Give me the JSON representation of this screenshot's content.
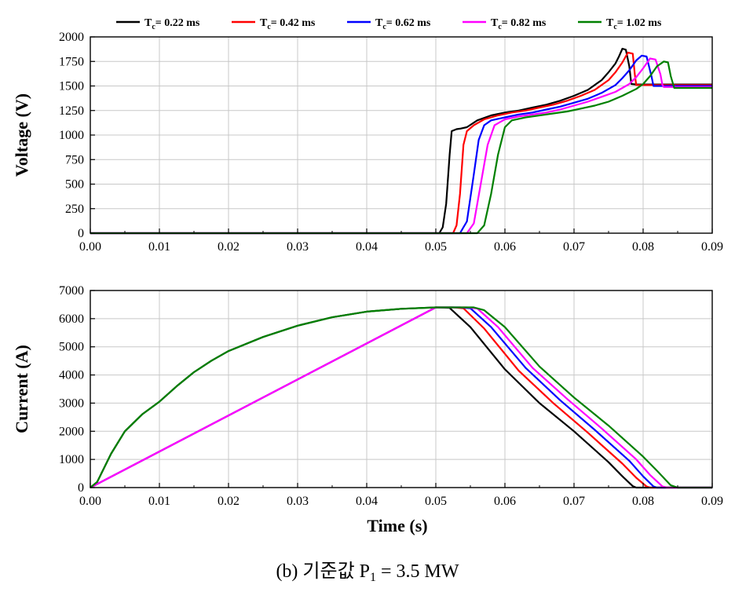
{
  "caption": "(b)  기준값 P",
  "caption_sub": "1",
  "caption_tail": " = 3.5 MW",
  "legend": {
    "placement": "top",
    "items": [
      {
        "prefix": "T",
        "sub": "c",
        "text": "= 0.22 ms",
        "color": "#000000"
      },
      {
        "prefix": "T",
        "sub": "c",
        "text": "= 0.42 ms",
        "color": "#ff0000"
      },
      {
        "prefix": "T",
        "sub": "c",
        "text": "= 0.62 ms",
        "color": "#0000ff"
      },
      {
        "prefix": "T",
        "sub": "c",
        "text": "= 0.82 ms",
        "color": "#ff00ff"
      },
      {
        "prefix": "T",
        "sub": "c",
        "text": "= 1.02 ms",
        "color": "#008000"
      }
    ]
  },
  "chart_data": [
    {
      "type": "line",
      "title": "",
      "xlabel": "",
      "ylabel": "Voltage (V)",
      "xlim": [
        0.0,
        0.09
      ],
      "ylim": [
        0,
        2000
      ],
      "xticks": [
        "0.00",
        "0.01",
        "0.02",
        "0.03",
        "0.04",
        "0.05",
        "0.06",
        "0.07",
        "0.08",
        "0.09"
      ],
      "yticks": [
        "0",
        "250",
        "500",
        "750",
        "1000",
        "1250",
        "1500",
        "1750",
        "2000"
      ],
      "grid": true,
      "series": [
        {
          "name": "Tc= 0.22 ms",
          "color": "#000000",
          "x": [
            0,
            0.0505,
            0.051,
            0.0515,
            0.052,
            0.0523,
            0.053,
            0.0535,
            0.0545,
            0.056,
            0.058,
            0.06,
            0.062,
            0.064,
            0.066,
            0.068,
            0.07,
            0.072,
            0.074,
            0.075,
            0.076,
            0.0765,
            0.077,
            0.0775,
            0.078,
            0.0783,
            0.079,
            0.09
          ],
          "y": [
            0,
            0,
            60,
            300,
            800,
            1040,
            1060,
            1065,
            1080,
            1150,
            1200,
            1230,
            1250,
            1280,
            1310,
            1350,
            1400,
            1460,
            1560,
            1640,
            1730,
            1800,
            1880,
            1870,
            1700,
            1520,
            1515,
            1515
          ]
        },
        {
          "name": "Tc= 0.42 ms",
          "color": "#ff0000",
          "x": [
            0,
            0.0525,
            0.053,
            0.0535,
            0.054,
            0.0545,
            0.0555,
            0.057,
            0.059,
            0.061,
            0.063,
            0.065,
            0.067,
            0.069,
            0.071,
            0.073,
            0.075,
            0.076,
            0.077,
            0.0778,
            0.0785,
            0.0788,
            0.079,
            0.09
          ],
          "y": [
            0,
            0,
            80,
            400,
            900,
            1040,
            1100,
            1160,
            1200,
            1230,
            1250,
            1280,
            1310,
            1350,
            1400,
            1460,
            1560,
            1640,
            1740,
            1840,
            1830,
            1620,
            1510,
            1510
          ]
        },
        {
          "name": "Tc= 0.62 ms",
          "color": "#0000ff",
          "x": [
            0,
            0.0535,
            0.0545,
            0.0555,
            0.0562,
            0.057,
            0.058,
            0.06,
            0.062,
            0.064,
            0.066,
            0.068,
            0.07,
            0.072,
            0.074,
            0.076,
            0.077,
            0.078,
            0.079,
            0.0798,
            0.0805,
            0.0812,
            0.0815,
            0.09
          ],
          "y": [
            0,
            0,
            120,
            600,
            950,
            1100,
            1150,
            1180,
            1210,
            1230,
            1260,
            1290,
            1330,
            1370,
            1430,
            1510,
            1580,
            1660,
            1760,
            1810,
            1800,
            1600,
            1500,
            1500
          ]
        },
        {
          "name": "Tc= 0.82 ms",
          "color": "#ff00ff",
          "x": [
            0,
            0.0545,
            0.0555,
            0.0565,
            0.0575,
            0.0585,
            0.06,
            0.062,
            0.064,
            0.066,
            0.068,
            0.07,
            0.072,
            0.074,
            0.076,
            0.078,
            0.079,
            0.08,
            0.081,
            0.0818,
            0.0825,
            0.0828,
            0.083,
            0.09
          ],
          "y": [
            0,
            0,
            100,
            500,
            900,
            1100,
            1160,
            1190,
            1210,
            1230,
            1260,
            1300,
            1340,
            1390,
            1440,
            1520,
            1590,
            1680,
            1780,
            1770,
            1620,
            1510,
            1490,
            1490
          ]
        },
        {
          "name": "Tc= 1.02 ms",
          "color": "#008000",
          "x": [
            0,
            0.056,
            0.057,
            0.058,
            0.059,
            0.06,
            0.061,
            0.063,
            0.065,
            0.067,
            0.069,
            0.071,
            0.073,
            0.075,
            0.077,
            0.079,
            0.08,
            0.081,
            0.082,
            0.083,
            0.0836,
            0.084,
            0.0845,
            0.09
          ],
          "y": [
            0,
            0,
            80,
            400,
            800,
            1080,
            1150,
            1180,
            1200,
            1220,
            1240,
            1270,
            1300,
            1340,
            1400,
            1470,
            1520,
            1600,
            1700,
            1750,
            1740,
            1600,
            1480,
            1480
          ]
        }
      ]
    },
    {
      "type": "line",
      "title": "",
      "xlabel": "Time (s)",
      "ylabel": "Current (A)",
      "xlim": [
        0.0,
        0.09
      ],
      "ylim": [
        0,
        7000
      ],
      "xticks": [
        "0.00",
        "0.01",
        "0.02",
        "0.03",
        "0.04",
        "0.05",
        "0.06",
        "0.07",
        "0.08",
        "0.09"
      ],
      "yticks": [
        "0",
        "1000",
        "2000",
        "3000",
        "4000",
        "5000",
        "6000",
        "7000"
      ],
      "grid": true,
      "series": [
        {
          "name": "Tc= 0.22 ms",
          "color": "#000000",
          "x": [
            0.0,
            0.001,
            0.002,
            0.003,
            0.005,
            0.0075,
            0.01,
            0.0125,
            0.015,
            0.0175,
            0.02,
            0.025,
            0.03,
            0.035,
            0.04,
            0.045,
            0.05,
            0.052,
            0.055,
            0.06,
            0.065,
            0.07,
            0.075,
            0.077,
            0.0785,
            0.079,
            0.09
          ],
          "y": [
            0,
            200,
            700,
            1200,
            2000,
            2600,
            3050,
            3600,
            4100,
            4500,
            4850,
            5350,
            5750,
            6050,
            6250,
            6350,
            6400,
            6380,
            5700,
            4200,
            3000,
            2000,
            900,
            400,
            50,
            0,
            0
          ]
        },
        {
          "name": "Tc= 0.42 ms",
          "color": "#ff0000",
          "x": [
            0.0,
            0.05,
            0.0525,
            0.054,
            0.057,
            0.062,
            0.067,
            0.072,
            0.077,
            0.079,
            0.0805,
            0.081,
            0.09
          ],
          "y": [
            0,
            6400,
            6400,
            6370,
            5650,
            4150,
            3000,
            1950,
            850,
            350,
            40,
            0,
            0
          ]
        },
        {
          "name": "Tc= 0.62 ms",
          "color": "#0000ff",
          "x": [
            0.0,
            0.05,
            0.0535,
            0.055,
            0.058,
            0.063,
            0.068,
            0.073,
            0.078,
            0.08,
            0.0815,
            0.082,
            0.09
          ],
          "y": [
            0,
            6400,
            6400,
            6370,
            5700,
            4250,
            3100,
            2050,
            950,
            400,
            40,
            0,
            0
          ]
        },
        {
          "name": "Tc= 0.82 ms",
          "color": "#ff00ff",
          "x": [
            0.0,
            0.05,
            0.0545,
            0.056,
            0.059,
            0.064,
            0.069,
            0.074,
            0.079,
            0.081,
            0.0828,
            0.0835,
            0.09
          ],
          "y": [
            0,
            6400,
            6400,
            6360,
            5700,
            4250,
            3150,
            2100,
            1000,
            450,
            40,
            0,
            0
          ]
        },
        {
          "name": "Tc= 1.02 ms",
          "color": "#008000",
          "x": [
            0.0,
            0.001,
            0.002,
            0.003,
            0.005,
            0.0075,
            0.01,
            0.0125,
            0.015,
            0.0175,
            0.02,
            0.025,
            0.03,
            0.035,
            0.04,
            0.045,
            0.05,
            0.0555,
            0.057,
            0.06,
            0.065,
            0.07,
            0.075,
            0.08,
            0.082,
            0.084,
            0.085,
            0.09
          ],
          "y": [
            0,
            200,
            700,
            1200,
            2000,
            2600,
            3050,
            3600,
            4100,
            4500,
            4850,
            5350,
            5750,
            6050,
            6250,
            6350,
            6400,
            6400,
            6300,
            5700,
            4300,
            3200,
            2200,
            1100,
            600,
            80,
            0,
            0
          ]
        }
      ]
    }
  ]
}
